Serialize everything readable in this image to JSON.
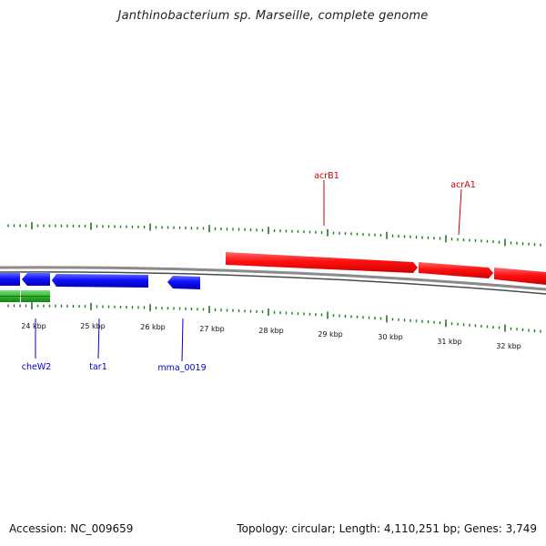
{
  "title": "Janthinobacterium sp. Marseille, complete genome",
  "colors": {
    "forward_gene": "#ff0000",
    "reverse_gene": "#0000ff",
    "rna": "#33bb33",
    "tick": "#1a7f1a",
    "backbone": "#8a8a8a",
    "label_forward": "#cc0000",
    "label_reverse": "#0000cc",
    "kbp_text": "#111111"
  },
  "scale_labels": [
    "24 kbp",
    "25 kbp",
    "26 kbp",
    "27 kbp",
    "28 kbp",
    "29 kbp",
    "30 kbp",
    "31 kbp",
    "32 kbp"
  ],
  "gene_labels": {
    "forward": [
      "acrB1",
      "acrA1"
    ],
    "reverse": [
      "cheW2",
      "tar1",
      "mma_0019"
    ]
  },
  "footer": {
    "accession": "Accession: NC_009659",
    "stats": "Topology: circular; Length: 4,110,251 bp; Genes: 3,749"
  }
}
